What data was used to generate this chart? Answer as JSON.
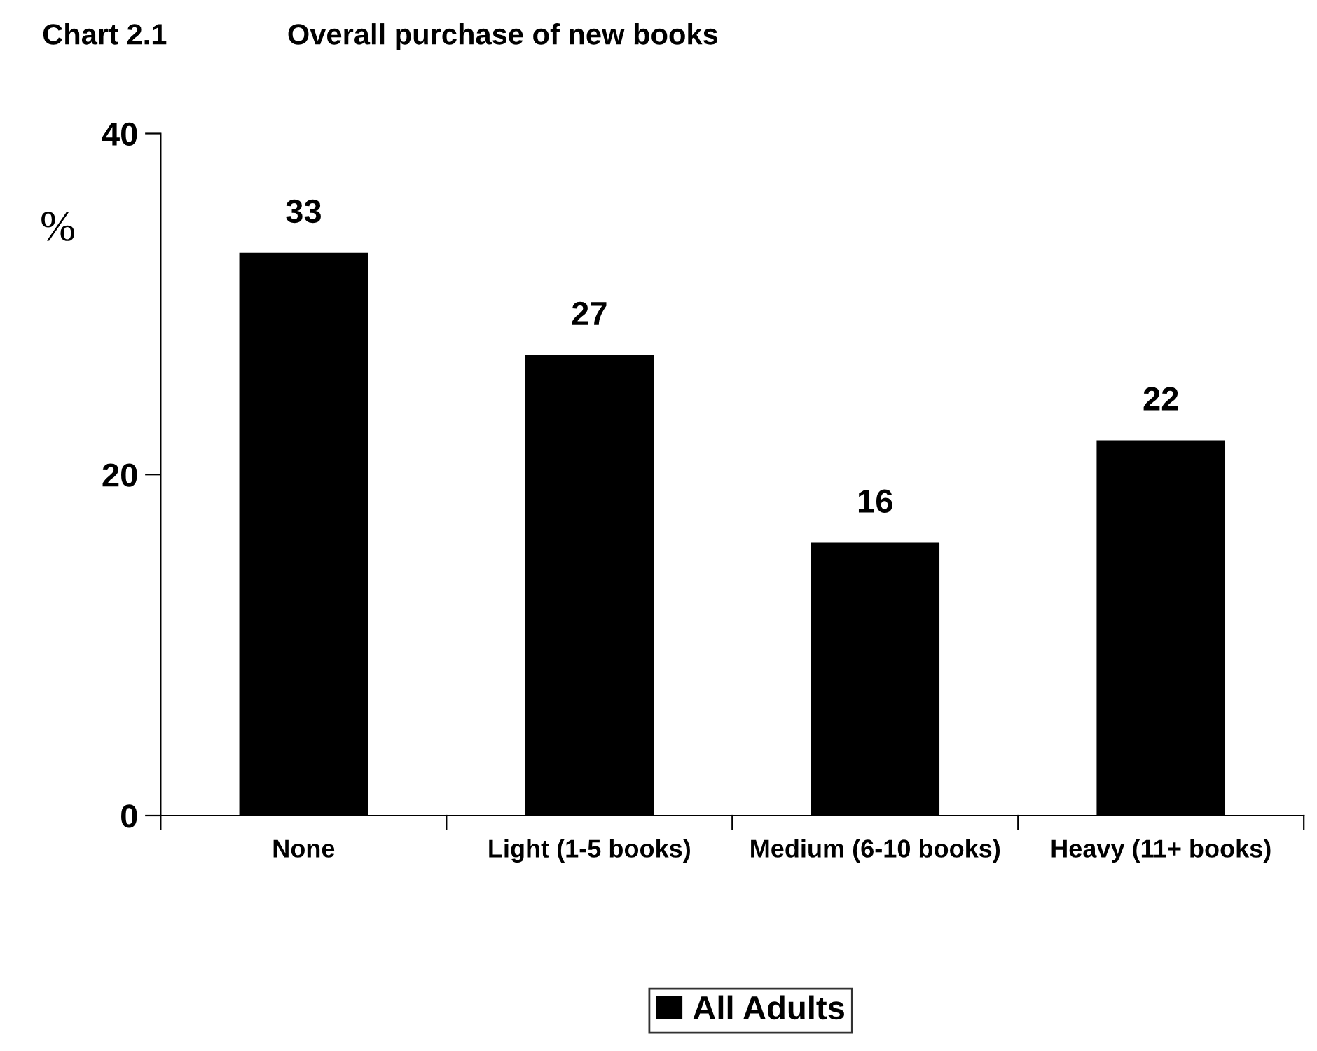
{
  "chart_data": {
    "type": "bar",
    "title": "Chart 2.1",
    "subtitle": "Overall purchase of new books",
    "ylabel": "%",
    "categories": [
      "None",
      "Light (1-5 books)",
      "Medium (6-10 books)",
      "Heavy (11+ books)"
    ],
    "series": [
      {
        "name": "All Adults",
        "color": "#000000",
        "values": [
          33,
          27,
          16,
          22
        ]
      }
    ],
    "ylim": [
      0,
      40
    ],
    "yticks": [
      0,
      20,
      40
    ],
    "data_labels": true,
    "legend": "bottom",
    "grid": false
  }
}
